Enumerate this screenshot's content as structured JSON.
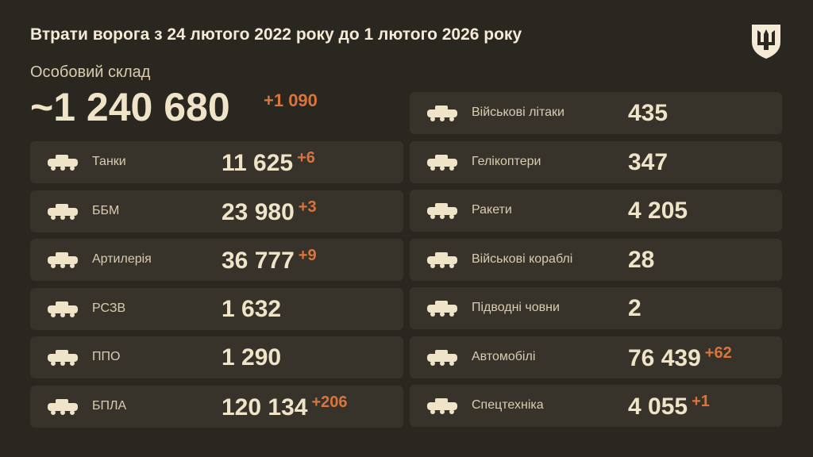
{
  "title": "Втрати ворога з 24 лютого 2022 року до 1 лютого 2026 року",
  "personnel": {
    "label": "Особовий склад",
    "value": "~1 240 680",
    "delta": "+1 090"
  },
  "colors": {
    "background": "#2a2620",
    "card": "#37332b",
    "text": "#efe3c8",
    "accent": "#d9753c"
  },
  "left": [
    {
      "icon": "tank-icon",
      "label": "Танки",
      "value": "11 625",
      "delta": "+6"
    },
    {
      "icon": "apc-icon",
      "label": "ББМ",
      "value": "23 980",
      "delta": "+3"
    },
    {
      "icon": "artillery-icon",
      "label": "Артилерія",
      "value": "36 777",
      "delta": "+9"
    },
    {
      "icon": "mlrs-icon",
      "label": "РСЗВ",
      "value": "1 632",
      "delta": ""
    },
    {
      "icon": "air-defense-icon",
      "label": "ППО",
      "value": "1 290",
      "delta": ""
    },
    {
      "icon": "drone-icon",
      "label": "БПЛА",
      "value": "120 134",
      "delta": "+206"
    }
  ],
  "right": [
    {
      "icon": "jet-icon",
      "label": "Військові літаки",
      "value": "435",
      "delta": ""
    },
    {
      "icon": "helicopter-icon",
      "label": "Гелікоптери",
      "value": "347",
      "delta": ""
    },
    {
      "icon": "missile-icon",
      "label": "Ракети",
      "value": "4 205",
      "delta": ""
    },
    {
      "icon": "warship-icon",
      "label": "Військові кораблі",
      "value": "28",
      "delta": ""
    },
    {
      "icon": "submarine-icon",
      "label": "Підводні човни",
      "value": "2",
      "delta": ""
    },
    {
      "icon": "truck-icon",
      "label": "Автомобілі",
      "value": "76 439",
      "delta": "+62"
    },
    {
      "icon": "special-equipment-icon",
      "label": "Спецтехніка",
      "value": "4 055",
      "delta": "+1"
    }
  ]
}
